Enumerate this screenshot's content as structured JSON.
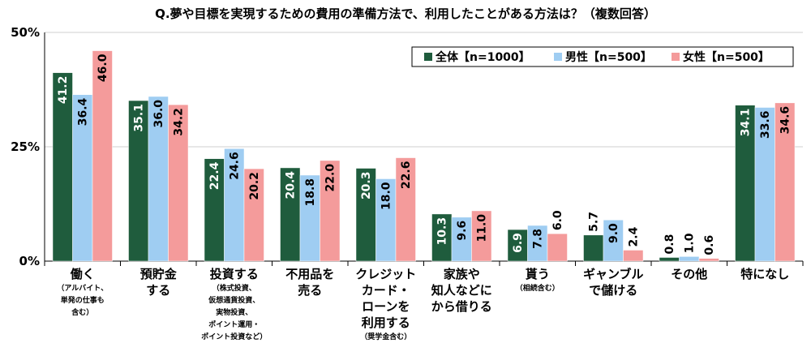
{
  "chart_data": {
    "type": "bar",
    "title": "Q.夢や目標を実現するための費用の準備方法で、利用したことがある方法は？（複数回答）",
    "y_ticks": [
      "50%",
      "25%",
      "0%"
    ],
    "ylim": [
      0,
      50
    ],
    "legend_position": "top-right",
    "categories": [
      {
        "main": [
          "働く"
        ],
        "sub": [
          "（アルバイト、",
          "単発の仕事も",
          "含む）"
        ]
      },
      {
        "main": [
          "預貯金",
          "する"
        ],
        "sub": []
      },
      {
        "main": [
          "投資する"
        ],
        "sub": [
          "（株式投資、",
          "仮想通貨投資、",
          "実物投資、",
          "ポイント運用・",
          "ポイント投資など）"
        ]
      },
      {
        "main": [
          "不用品を",
          "売る"
        ],
        "sub": []
      },
      {
        "main": [
          "クレジット",
          "カード・",
          "ローンを",
          "利用する"
        ],
        "sub": [
          "（奨学金含む）"
        ]
      },
      {
        "main": [
          "家族や",
          "知人などに",
          "から借りる"
        ],
        "sub": []
      },
      {
        "main": [
          "貰う"
        ],
        "sub": [
          "（相続含む）"
        ]
      },
      {
        "main": [
          "ギャンブル",
          "で儲ける"
        ],
        "sub": []
      },
      {
        "main": [
          "その他"
        ],
        "sub": []
      },
      {
        "main": [
          "特になし"
        ],
        "sub": []
      }
    ],
    "series": [
      {
        "name": "全体【n=1000】",
        "color": "#1f5c3d",
        "label_color": "#ffffff",
        "values": [
          41.2,
          35.1,
          22.4,
          20.4,
          20.3,
          10.3,
          6.9,
          5.7,
          0.8,
          34.1
        ]
      },
      {
        "name": "男性【n=500】",
        "color": "#9fcdf2",
        "label_color": "#000000",
        "values": [
          36.4,
          36.0,
          24.6,
          18.8,
          18.0,
          9.6,
          7.8,
          9.0,
          1.0,
          33.6
        ]
      },
      {
        "name": "女性【n=500】",
        "color": "#f49b9b",
        "label_color": "#000000",
        "values": [
          46.0,
          34.2,
          20.2,
          22.0,
          22.6,
          11.0,
          6.0,
          2.4,
          0.6,
          34.6
        ]
      }
    ]
  }
}
